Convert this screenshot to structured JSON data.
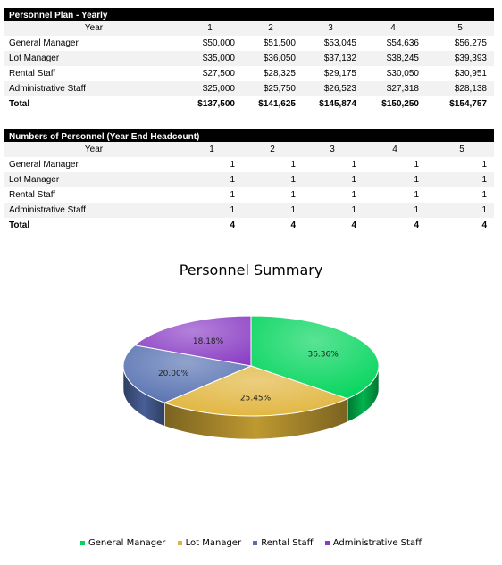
{
  "plan_table": {
    "title": "Personnel Plan - Yearly",
    "year_label": "Year",
    "years": [
      "1",
      "2",
      "3",
      "4",
      "5"
    ],
    "rows": [
      {
        "label": "General Manager",
        "values": [
          "$50,000",
          "$51,500",
          "$53,045",
          "$54,636",
          "$56,275"
        ]
      },
      {
        "label": "Lot Manager",
        "values": [
          "$35,000",
          "$36,050",
          "$37,132",
          "$38,245",
          "$39,393"
        ]
      },
      {
        "label": "Rental Staff",
        "values": [
          "$27,500",
          "$28,325",
          "$29,175",
          "$30,050",
          "$30,951"
        ]
      },
      {
        "label": "Administrative Staff",
        "values": [
          "$25,000",
          "$25,750",
          "$26,523",
          "$27,318",
          "$28,138"
        ]
      }
    ],
    "total": {
      "label": "Total",
      "values": [
        "$137,500",
        "$141,625",
        "$145,874",
        "$150,250",
        "$154,757"
      ]
    }
  },
  "headcount_table": {
    "title": "Numbers of Personnel (Year End Headcount)",
    "year_label": "Year",
    "years": [
      "1",
      "2",
      "3",
      "4",
      "5"
    ],
    "rows": [
      {
        "label": "General Manager",
        "values": [
          "1",
          "1",
          "1",
          "1",
          "1"
        ]
      },
      {
        "label": "Lot Manager",
        "values": [
          "1",
          "1",
          "1",
          "1",
          "1"
        ]
      },
      {
        "label": "Rental Staff",
        "values": [
          "1",
          "1",
          "1",
          "1",
          "1"
        ]
      },
      {
        "label": "Administrative Staff",
        "values": [
          "1",
          "1",
          "1",
          "1",
          "1"
        ]
      }
    ],
    "total": {
      "label": "Total",
      "values": [
        "4",
        "4",
        "4",
        "4",
        "4"
      ]
    }
  },
  "chart_data": {
    "type": "pie",
    "title": "Personnel Summary",
    "categories": [
      "General Manager",
      "Lot Manager",
      "Rental Staff",
      "Administrative Staff"
    ],
    "values": [
      36.36,
      25.45,
      20.0,
      18.18
    ],
    "data_labels": [
      "36.36%",
      "25.45%",
      "20.00%",
      "18.18%"
    ],
    "colors": [
      "#00d45a",
      "#e0b43a",
      "#5570b0",
      "#8a3dc4"
    ],
    "legend_position": "bottom",
    "style": "3d"
  }
}
